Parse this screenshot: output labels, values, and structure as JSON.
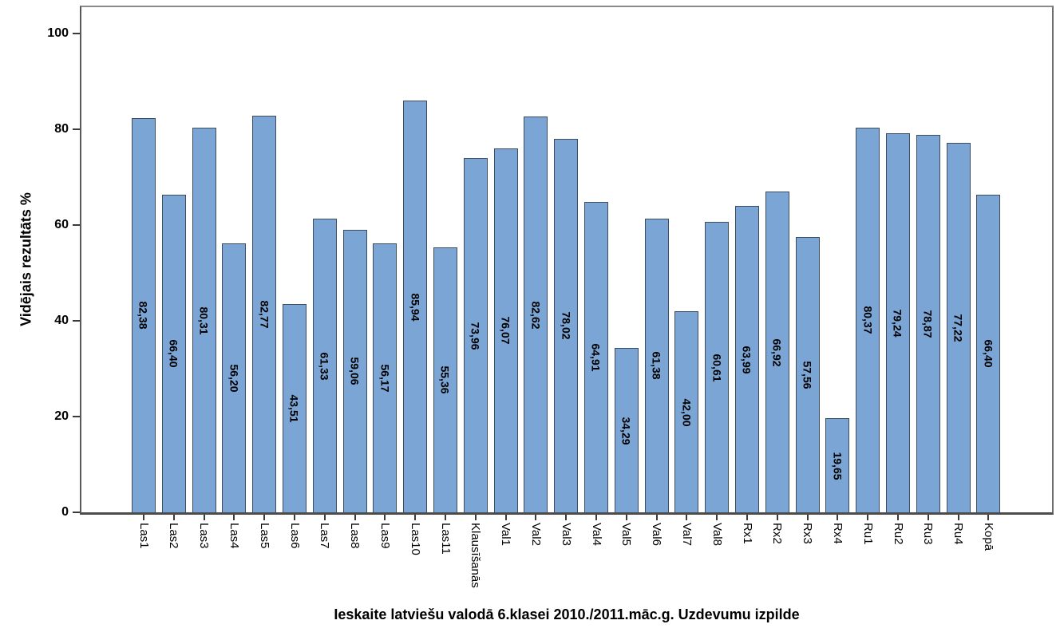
{
  "chart_data": {
    "type": "bar",
    "title": "",
    "xlabel": "Ieskaite latviešu valodā 6.klasei 2010./2011.māc.g. Uzdevumu izpilde",
    "ylabel": "Vidējais rezultāts %",
    "categories": [
      "Las1",
      "Las2",
      "Las3",
      "Las4",
      "Las5",
      "Las6",
      "Las7",
      "Las8",
      "Las9",
      "Las10",
      "Las11",
      "Klausīšanās",
      "Val1",
      "Val2",
      "Val3",
      "Val4",
      "Val5",
      "Val6",
      "Val7",
      "Val8",
      "Rx1",
      "Rx2",
      "Rx3",
      "Rx4",
      "Ru1",
      "Ru2",
      "Ru3",
      "Ru4",
      "Kopā"
    ],
    "values": [
      82.38,
      66.4,
      80.31,
      56.2,
      82.77,
      43.51,
      61.33,
      59.06,
      56.17,
      85.94,
      55.36,
      73.96,
      76.07,
      82.62,
      78.02,
      64.91,
      34.29,
      61.38,
      42.0,
      60.61,
      63.99,
      66.92,
      57.56,
      19.65,
      80.37,
      79.24,
      78.87,
      77.22,
      66.4
    ],
    "value_labels": [
      "82,38",
      "66,40",
      "80,31",
      "56,20",
      "82,77",
      "43,51",
      "61,33",
      "59,06",
      "56,17",
      "85,94",
      "55,36",
      "73,96",
      "76,07",
      "82,62",
      "78,02",
      "64,91",
      "34,29",
      "61,38",
      "42,00",
      "60,61",
      "63,99",
      "66,92",
      "57,56",
      "19,65",
      "80,37",
      "79,24",
      "78,87",
      "77,22",
      "66,40"
    ],
    "y_ticks": [
      0,
      20,
      40,
      60,
      80,
      100
    ],
    "ylim": [
      0,
      105.5
    ],
    "grid": false,
    "legend": false,
    "bar_color": "#7BA5D5",
    "bar_border_color": "#3E4C5D",
    "background": "#FFFFFF"
  }
}
